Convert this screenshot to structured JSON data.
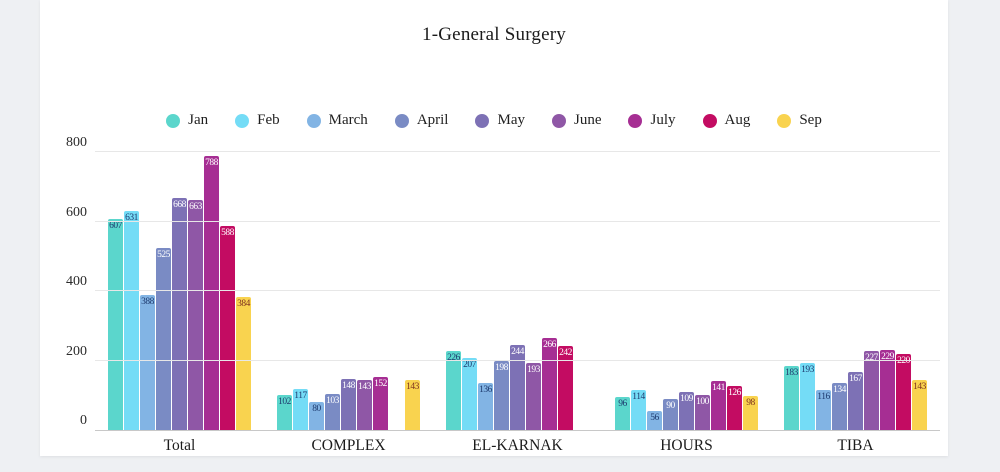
{
  "title": "1-General Surgery",
  "chart_data": {
    "type": "bar",
    "title": "1-General Surgery",
    "categories": [
      "Total",
      "COMPLEX",
      "EL-KARNAK",
      "HOURS",
      "TIBA"
    ],
    "ylim": [
      0,
      800
    ],
    "y_ticks": [
      0,
      200,
      400,
      600,
      800
    ],
    "grid": true,
    "legend_position": "top",
    "series": [
      {
        "name": "Jan",
        "color": "#5bd6cc",
        "label_color": "#1e3a6e",
        "values": [
          607,
          102,
          226,
          96,
          183
        ]
      },
      {
        "name": "Feb",
        "color": "#74dcf6",
        "label_color": "#1e3a6e",
        "values": [
          631,
          117,
          207,
          114,
          193
        ]
      },
      {
        "name": "March",
        "color": "#82b4e4",
        "label_color": "#1e3a6e",
        "values": [
          388,
          80,
          136,
          56,
          116
        ]
      },
      {
        "name": "April",
        "color": "#7a8bc4",
        "label_color": "#ffffff",
        "values": [
          525,
          103,
          198,
          90,
          134
        ]
      },
      {
        "name": "May",
        "color": "#7d71b5",
        "label_color": "#ffffff",
        "values": [
          668,
          148,
          244,
          109,
          167
        ]
      },
      {
        "name": "June",
        "color": "#8f57a6",
        "label_color": "#ffffff",
        "values": [
          663,
          143,
          193,
          100,
          227
        ]
      },
      {
        "name": "July",
        "color": "#a62e93",
        "label_color": "#ffffff",
        "values": [
          788,
          152,
          266,
          141,
          229
        ]
      },
      {
        "name": "Aug",
        "color": "#c30c62",
        "label_color": "#ffffff",
        "values": [
          588,
          null,
          242,
          126,
          220
        ]
      },
      {
        "name": "Sep",
        "color": "#f9d34f",
        "label_color": "#7d3220",
        "values": [
          384,
          143,
          null,
          98,
          143
        ]
      }
    ]
  }
}
